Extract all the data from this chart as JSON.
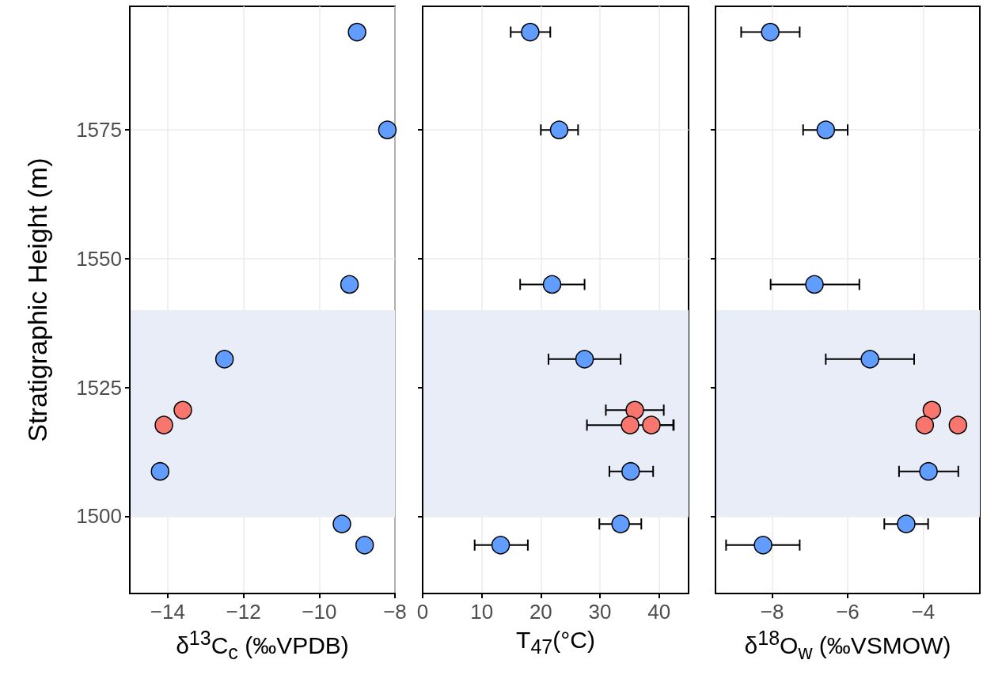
{
  "chart_data": [
    {
      "type": "scatter",
      "xlabel": "δ$^{13}$C$_{c}$ (‰VPDB)",
      "ylabel": "Stratigraphic Height (m)",
      "xlim": [
        -15,
        -8
      ],
      "xticks": [
        -14,
        -12,
        -10,
        -8
      ],
      "ylim": [
        1485,
        1599
      ],
      "yticks": [
        1500,
        1525,
        1550,
        1575
      ],
      "grid": true,
      "marker": "circle",
      "bands": [
        {
          "axis": "y",
          "from": 1500,
          "to": 1540,
          "color": "#e9edf8"
        }
      ],
      "series": [
        {
          "color": "#619cff",
          "x": [
            -9.0,
            -8.2,
            -9.2,
            -12.5,
            -14.2,
            -9.4,
            -8.8
          ],
          "values": [
            1594,
            1575,
            1545,
            1530.5,
            1508.7,
            1498.5,
            1494.4
          ]
        },
        {
          "color": "#f8766d",
          "x": [
            -13.6,
            -14.1
          ],
          "values": [
            1520.6,
            1517.7
          ]
        }
      ]
    },
    {
      "type": "scatter",
      "xlabel": "T$_{47}$(°C)",
      "xlim": [
        0,
        45
      ],
      "xticks": [
        0,
        10,
        20,
        30,
        40
      ],
      "ylim": [
        1485,
        1599
      ],
      "yticks": [
        {
          "value": 1500,
          "label": null
        },
        {
          "value": 1525,
          "label": null
        },
        {
          "value": 1550,
          "label": null
        },
        {
          "value": 1575,
          "label": null
        }
      ],
      "tick_labels": "x",
      "grid": true,
      "marker": "circle",
      "bands": [
        {
          "axis": "y",
          "from": 1500,
          "to": 1540,
          "color": "#e9edf8"
        }
      ],
      "series": [
        {
          "color": "#619cff",
          "x": [
            18.2,
            23.1,
            21.9,
            27.4,
            35.2,
            33.5,
            13.2
          ],
          "values": [
            1594,
            1575,
            1545,
            1530.5,
            1508.7,
            1498.5,
            1494.4
          ],
          "xerrors": [
            [
              14.9,
              21.6
            ],
            [
              20.0,
              26.3
            ],
            [
              16.5,
              27.4
            ],
            [
              21.3,
              33.5
            ],
            [
              31.6,
              39.0
            ],
            [
              29.9,
              37.0
            ],
            [
              8.8,
              17.8
            ]
          ]
        },
        {
          "color": "#f8766d",
          "x": [
            35.9,
            35.1,
            38.7
          ],
          "values": [
            1520.6,
            1517.7,
            1517.7
          ],
          "xerrors": [
            [
              31.0,
              40.8
            ],
            [
              27.8,
              42.4
            ],
            [
              38.7,
              42.5
            ]
          ]
        }
      ]
    },
    {
      "type": "scatter",
      "xlabel": "δ$^{18}$O$_{w}$ (‰VSMOW)",
      "xlim": [
        -9.5,
        -2.5
      ],
      "xticks": [
        -8,
        -6,
        -4
      ],
      "ylim": [
        1485,
        1599
      ],
      "yticks": [
        {
          "value": 1500,
          "label": null
        },
        {
          "value": 1525,
          "label": null
        },
        {
          "value": 1550,
          "label": null
        },
        {
          "value": 1575,
          "label": null
        }
      ],
      "tick_labels": "x",
      "grid": true,
      "marker": "circle",
      "bands": [
        {
          "axis": "y",
          "from": 1500,
          "to": 1540,
          "color": "#e9edf8"
        }
      ],
      "series": [
        {
          "color": "#619cff",
          "x": [
            -8.05,
            -6.58,
            -6.88,
            -5.41,
            -3.86,
            -4.45,
            -8.24
          ],
          "values": [
            1594,
            1575,
            1545,
            1530.5,
            1508.7,
            1498.5,
            1494.4
          ],
          "xerrors": [
            [
              -8.82,
              -7.27
            ],
            [
              -7.18,
              -6.0
            ],
            [
              -8.04,
              -5.69
            ],
            [
              -6.58,
              -4.24
            ],
            [
              -4.64,
              -3.07
            ],
            [
              -5.03,
              -3.87
            ],
            [
              -9.22,
              -7.27
            ]
          ]
        },
        {
          "color": "#f8766d",
          "x": [
            -3.77,
            -3.96,
            -3.08
          ],
          "values": [
            1520.6,
            1517.7,
            1517.7
          ]
        }
      ]
    }
  ]
}
